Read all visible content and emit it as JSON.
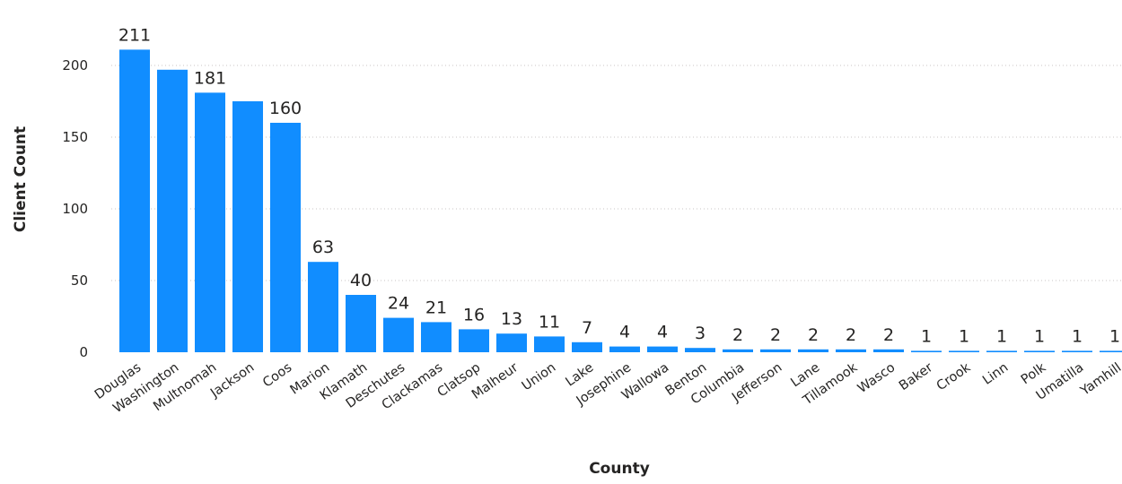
{
  "chart_data": {
    "type": "bar",
    "title": "",
    "xlabel": "County",
    "ylabel": "Client Count",
    "ylim": [
      0,
      220
    ],
    "yticks": [
      0,
      50,
      100,
      150,
      200
    ],
    "grid": true,
    "legend": "none",
    "bar_color": "#118DFF",
    "categories": [
      "Douglas",
      "Washington",
      "Multnomah",
      "Jackson",
      "Coos",
      "Marion",
      "Klamath",
      "Deschutes",
      "Clackamas",
      "Clatsop",
      "Malheur",
      "Union",
      "Lake",
      "Josephine",
      "Wallowa",
      "Benton",
      "Columbia",
      "Jefferson",
      "Lane",
      "Tillamook",
      "Wasco",
      "Baker",
      "Crook",
      "Linn",
      "Polk",
      "Umatilla",
      "Yamhill"
    ],
    "values": [
      211,
      197,
      181,
      175,
      160,
      63,
      40,
      24,
      21,
      16,
      13,
      11,
      7,
      4,
      4,
      3,
      2,
      2,
      2,
      2,
      2,
      1,
      1,
      1,
      1,
      1,
      1
    ],
    "data_labels": [
      "211",
      "",
      "181",
      "",
      "160",
      "63",
      "40",
      "24",
      "21",
      "16",
      "13",
      "11",
      "7",
      "4",
      "4",
      "3",
      "2",
      "2",
      "2",
      "2",
      "2",
      "1",
      "1",
      "1",
      "1",
      "1",
      "1"
    ]
  }
}
